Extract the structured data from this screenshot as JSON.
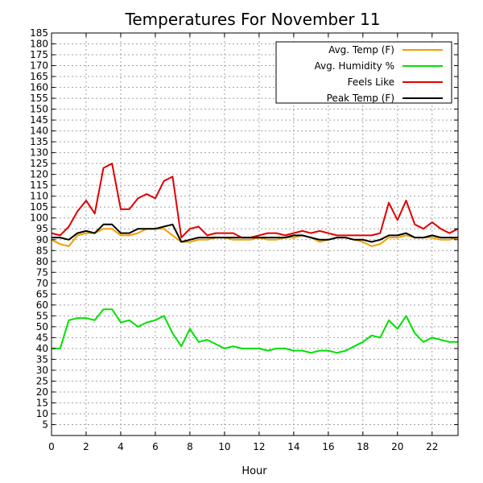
{
  "chart_data": {
    "type": "line",
    "title": "Temperatures For November 11",
    "xlabel": "Hour",
    "ylabel": "",
    "xlim": [
      0,
      23.5
    ],
    "ylim": [
      0,
      185
    ],
    "xticks": [
      0,
      2,
      4,
      6,
      8,
      10,
      12,
      14,
      16,
      18,
      20,
      22
    ],
    "yticks": [
      5,
      10,
      15,
      20,
      25,
      30,
      35,
      40,
      45,
      50,
      55,
      60,
      65,
      70,
      75,
      80,
      85,
      90,
      95,
      100,
      105,
      110,
      115,
      120,
      125,
      130,
      135,
      140,
      145,
      150,
      155,
      160,
      165,
      170,
      175,
      180,
      185
    ],
    "grid": true,
    "legend": "top-right",
    "x": [
      0,
      0.5,
      1,
      1.5,
      2,
      2.5,
      3,
      3.5,
      4,
      4.5,
      5,
      5.5,
      6,
      6.5,
      7,
      7.5,
      8,
      8.5,
      9,
      9.5,
      10,
      10.5,
      11,
      11.5,
      12,
      12.5,
      13,
      13.5,
      14,
      14.5,
      15,
      15.5,
      16,
      16.5,
      17,
      17.5,
      18,
      18.5,
      19,
      19.5,
      20,
      20.5,
      21,
      21.5,
      22,
      22.5,
      23,
      23.5
    ],
    "series": [
      {
        "name": "Avg. Temp (F)",
        "color": "#f0a000",
        "values": [
          90,
          88,
          87,
          92,
          93,
          93,
          95,
          95,
          92,
          92,
          93,
          95,
          95,
          95,
          92,
          89,
          89,
          90,
          90,
          91,
          91,
          90,
          90,
          90,
          91,
          90,
          90,
          91,
          91,
          92,
          91,
          89,
          90,
          91,
          91,
          90,
          89,
          87,
          88,
          91,
          91,
          92,
          91,
          91,
          91,
          90,
          90,
          91
        ]
      },
      {
        "name": "Avg. Humidity %",
        "color": "#00e000",
        "values": [
          40,
          40,
          53,
          54,
          54,
          53,
          58,
          58,
          52,
          53,
          50,
          52,
          53,
          55,
          47,
          41,
          49,
          43,
          44,
          42,
          40,
          41,
          40,
          40,
          40,
          39,
          40,
          40,
          39,
          39,
          38,
          39,
          39,
          38,
          39,
          41,
          43,
          46,
          45,
          53,
          49,
          55,
          47,
          43,
          45,
          44,
          43,
          43
        ]
      },
      {
        "name": "Feels Like",
        "color": "#e00000",
        "values": [
          93,
          92,
          96,
          103,
          108,
          102,
          123,
          125,
          104,
          104,
          109,
          111,
          109,
          117,
          119,
          91,
          95,
          96,
          92,
          93,
          93,
          93,
          91,
          91,
          92,
          93,
          93,
          92,
          93,
          94,
          93,
          94,
          93,
          92,
          92,
          92,
          92,
          92,
          93,
          107,
          99,
          108,
          97,
          95,
          98,
          95,
          93,
          95
        ]
      },
      {
        "name": "Peak Temp (F)",
        "color": "#000000",
        "values": [
          91,
          91,
          90,
          93,
          94,
          93,
          97,
          97,
          93,
          93,
          95,
          95,
          95,
          96,
          97,
          89,
          90,
          91,
          91,
          91,
          91,
          91,
          91,
          91,
          91,
          91,
          91,
          91,
          92,
          92,
          91,
          90,
          90,
          91,
          91,
          90,
          90,
          89,
          90,
          92,
          92,
          93,
          91,
          91,
          92,
          91,
          91,
          91
        ]
      }
    ]
  }
}
